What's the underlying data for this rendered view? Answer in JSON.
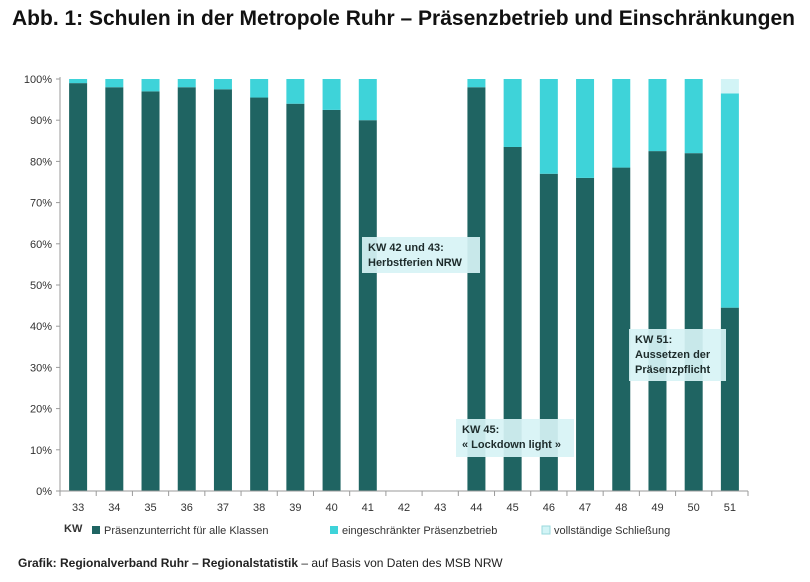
{
  "title": "Abb. 1: Schulen in der Metropole Ruhr – Präsenzbetrieb und Einschränkungen",
  "source": {
    "bold": "Grafik: Regionalverband Ruhr – Regionalstatistik",
    "rest": " – auf Basis von Daten des MSB NRW"
  },
  "chart_data": {
    "type": "bar",
    "stacked": true,
    "title": "Abb. 1: Schulen in der Metropole Ruhr – Präsenzbetrieb und Einschränkungen",
    "xlabel": "KW",
    "ylabel": "",
    "ylim": [
      0,
      100
    ],
    "yticks": [
      "0%",
      "10%",
      "20%",
      "30%",
      "40%",
      "50%",
      "60%",
      "70%",
      "80%",
      "90%",
      "100%"
    ],
    "categories": [
      "33",
      "34",
      "35",
      "36",
      "37",
      "38",
      "39",
      "40",
      "41",
      "42",
      "43",
      "44",
      "45",
      "46",
      "47",
      "48",
      "49",
      "50",
      "51"
    ],
    "series": [
      {
        "name": "Präsenzunterricht für alle Klassen",
        "color": "#1f6462",
        "values": [
          99,
          98,
          97,
          98,
          97.5,
          95.5,
          94,
          92.5,
          90,
          null,
          null,
          98,
          83.5,
          77,
          76,
          78.5,
          82.5,
          82,
          44.5
        ]
      },
      {
        "name": "eingeschränkter Präsenzbetrieb",
        "color": "#3ed3d9",
        "values": [
          1,
          2,
          3,
          2,
          2.5,
          4.5,
          6,
          7.5,
          10,
          null,
          null,
          2,
          16.5,
          23,
          24,
          21.5,
          17.5,
          18,
          52
        ]
      },
      {
        "name": "vollständige Schließung",
        "color": "#d2f4f6",
        "values": [
          0,
          0,
          0,
          0,
          0,
          0,
          0,
          0,
          0,
          null,
          null,
          0,
          0,
          0,
          0,
          0,
          0,
          0,
          3.5
        ]
      }
    ],
    "legend": "bottom",
    "grid": false,
    "annotations": [
      {
        "lines": [
          "KW 42 und 43:",
          "Herbstferien NRW"
        ],
        "at": "43"
      },
      {
        "lines": [
          "KW 45:",
          "« Lockdown light »"
        ],
        "at": "45"
      },
      {
        "lines": [
          "KW 51:",
          "Aussetzen der",
          "Präsenzpflicht"
        ],
        "at": "51"
      }
    ],
    "colors": {
      "bar_dark": "#1f6462",
      "bar_mid": "#3ed3d9",
      "bar_light": "#d2f4f6",
      "annotation_bg": "#d7f3f5"
    }
  }
}
